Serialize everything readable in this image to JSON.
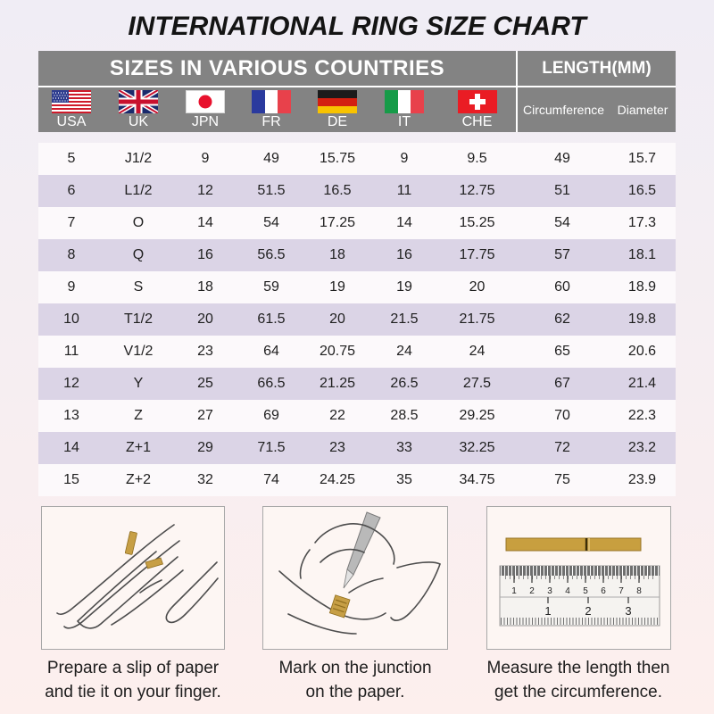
{
  "chart_data": {
    "type": "table",
    "title": "INTERNATIONAL RING SIZE CHART",
    "group_headers": [
      {
        "label": "SIZES IN VARIOUS COUNTRIES",
        "span": 7
      },
      {
        "label": "LENGTH(MM)",
        "span": 2
      }
    ],
    "columns": [
      "USA",
      "UK",
      "JPN",
      "FR",
      "DE",
      "IT",
      "CHE",
      "Circumference",
      "Diameter"
    ],
    "flag_icons": [
      "usa-flag-icon",
      "uk-flag-icon",
      "japan-flag-icon",
      "france-flag-icon",
      "germany-flag-icon",
      "italy-flag-icon",
      "switzerland-flag-icon"
    ],
    "rows": [
      [
        "5",
        "J1/2",
        "9",
        "49",
        "15.75",
        "9",
        "9.5",
        "49",
        "15.7"
      ],
      [
        "6",
        "L1/2",
        "12",
        "51.5",
        "16.5",
        "11",
        "12.75",
        "51",
        "16.5"
      ],
      [
        "7",
        "O",
        "14",
        "54",
        "17.25",
        "14",
        "15.25",
        "54",
        "17.3"
      ],
      [
        "8",
        "Q",
        "16",
        "56.5",
        "18",
        "16",
        "17.75",
        "57",
        "18.1"
      ],
      [
        "9",
        "S",
        "18",
        "59",
        "19",
        "19",
        "20",
        "60",
        "18.9"
      ],
      [
        "10",
        "T1/2",
        "20",
        "61.5",
        "20",
        "21.5",
        "21.75",
        "62",
        "19.8"
      ],
      [
        "11",
        "V1/2",
        "23",
        "64",
        "20.75",
        "24",
        "24",
        "65",
        "20.6"
      ],
      [
        "12",
        "Y",
        "25",
        "66.5",
        "21.25",
        "26.5",
        "27.5",
        "67",
        "21.4"
      ],
      [
        "13",
        "Z",
        "27",
        "69",
        "22",
        "28.5",
        "29.25",
        "70",
        "22.3"
      ],
      [
        "14",
        "Z+1",
        "29",
        "71.5",
        "23",
        "33",
        "32.25",
        "72",
        "23.2"
      ],
      [
        "15",
        "Z+2",
        "32",
        "74",
        "24.25",
        "35",
        "34.75",
        "75",
        "23.9"
      ]
    ]
  },
  "instructions": [
    {
      "icon": "hand-with-paper-strip-illustration",
      "caption_line1": "Prepare a slip of paper",
      "caption_line2": "and tie it on your finger."
    },
    {
      "icon": "pen-marking-paper-illustration",
      "caption_line1": "Mark on the junction",
      "caption_line2": "on the paper."
    },
    {
      "icon": "ruler-measuring-strip-illustration",
      "caption_line1": "Measure the length then",
      "caption_line2": "get the circumference."
    }
  ],
  "colors": {
    "header_bar": "#838383",
    "header_text": "#ffffff",
    "row_alt": "#dbd4e6",
    "row_base": "#fcf9fb",
    "body_text": "#1f1f1f",
    "gold": "#c79f45",
    "bg_top": "#f0edf5",
    "bg_bottom": "#fdefed"
  }
}
